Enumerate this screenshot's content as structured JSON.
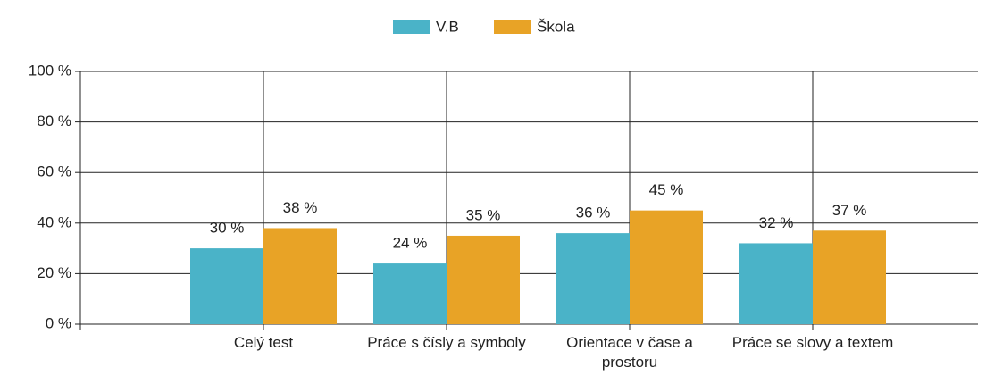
{
  "chart_data": {
    "type": "bar",
    "categories": [
      "Celý test",
      "Práce s čísly a symboly",
      "Orientace v čase a prostoru",
      "Práce se slovy a textem"
    ],
    "series": [
      {
        "name": "V.B",
        "color": "#4ab3c8",
        "values": [
          30,
          24,
          36,
          32
        ],
        "value_labels": [
          "30 %",
          "24 %",
          "36 %",
          "32 %"
        ]
      },
      {
        "name": "Škola",
        "color": "#e8a326",
        "values": [
          38,
          35,
          45,
          37
        ],
        "value_labels": [
          "38 %",
          "35 %",
          "45 %",
          "37 %"
        ]
      }
    ],
    "ylim": [
      0,
      100
    ],
    "yticks": [
      {
        "value": 0,
        "label": "0 %"
      },
      {
        "value": 20,
        "label": "20 %"
      },
      {
        "value": 40,
        "label": "40 %"
      },
      {
        "value": 60,
        "label": "60 %"
      },
      {
        "value": 80,
        "label": "80 %"
      },
      {
        "value": 100,
        "label": "100 %"
      }
    ],
    "grid": true,
    "legend": "top"
  }
}
